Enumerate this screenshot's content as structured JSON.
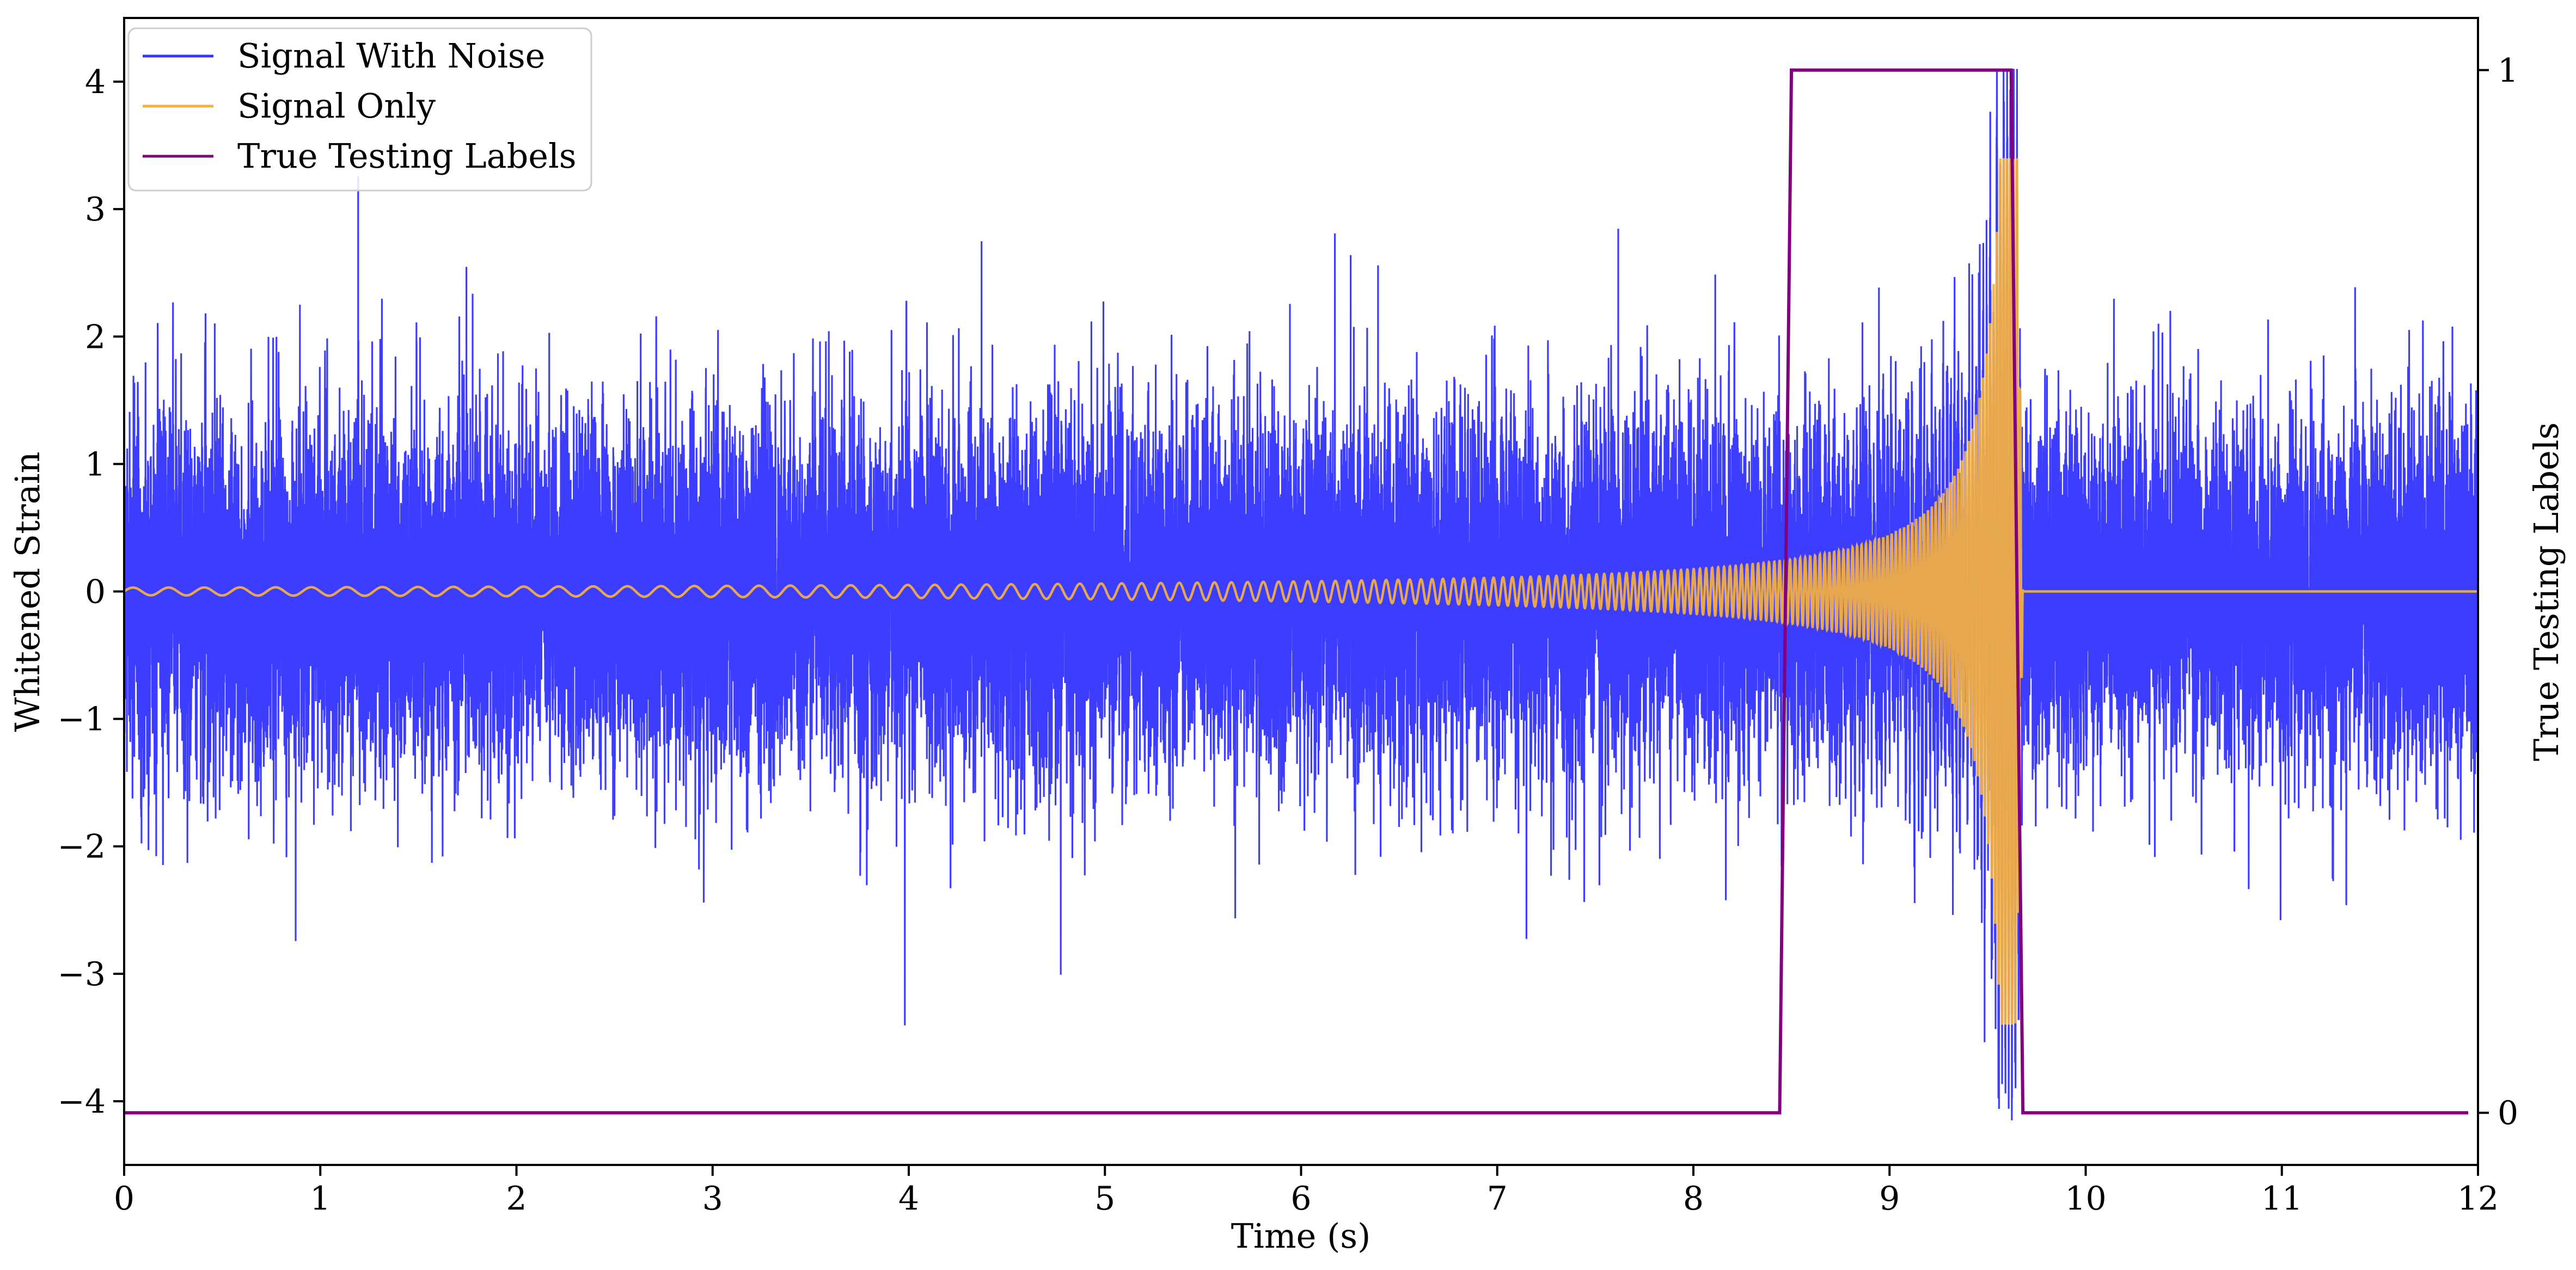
{
  "chart_data": {
    "type": "line",
    "title": "",
    "xlabel": "Time (s)",
    "ylabel": "Whitened Strain",
    "y2label": "True Testing Labels",
    "xlim": [
      0,
      12
    ],
    "ylim": [
      -4.5,
      4.5
    ],
    "y2lim": [
      -0.05,
      1.05
    ],
    "x_ticks": [
      0,
      1,
      2,
      3,
      4,
      5,
      6,
      7,
      8,
      9,
      10,
      11,
      12
    ],
    "x_tick_labels": [
      "0",
      "1",
      "2",
      "3",
      "4",
      "5",
      "6",
      "7",
      "8",
      "9",
      "10",
      "11",
      "12"
    ],
    "y_ticks": [
      -4,
      -3,
      -2,
      -1,
      0,
      1,
      2,
      3,
      4
    ],
    "y_tick_labels": [
      "−4",
      "−3",
      "−2",
      "−1",
      "0",
      "1",
      "2",
      "3",
      "4"
    ],
    "y2_ticks": [
      0,
      1
    ],
    "y2_tick_labels": [
      "0",
      "1"
    ],
    "grid": false,
    "legend": {
      "position": "top-left"
    },
    "series": [
      {
        "name": "Signal With Noise",
        "color": "#3333ff",
        "axis": "left",
        "description_values": {
          "noise_amplitude_typical": [
            -2.5,
            2.5
          ],
          "extremes": [
            -4.2,
            4.0
          ]
        }
      },
      {
        "name": "Signal Only",
        "color": "#f4b040",
        "axis": "left",
        "envelope": {
          "t0": 0,
          "amp0": 0.03,
          "t_peak": 9.65,
          "amp_peak": 3.4,
          "t_end": 9.68
        },
        "chirp": {
          "freq_start_hz": 5.5,
          "freq_end_hz": 60
        }
      },
      {
        "name": "True Testing Labels",
        "color": "#800080",
        "axis": "right",
        "x": [
          0,
          8.44,
          8.5,
          9.62,
          9.68,
          11.95
        ],
        "y": [
          0,
          0,
          1,
          1,
          0,
          0
        ]
      }
    ]
  }
}
